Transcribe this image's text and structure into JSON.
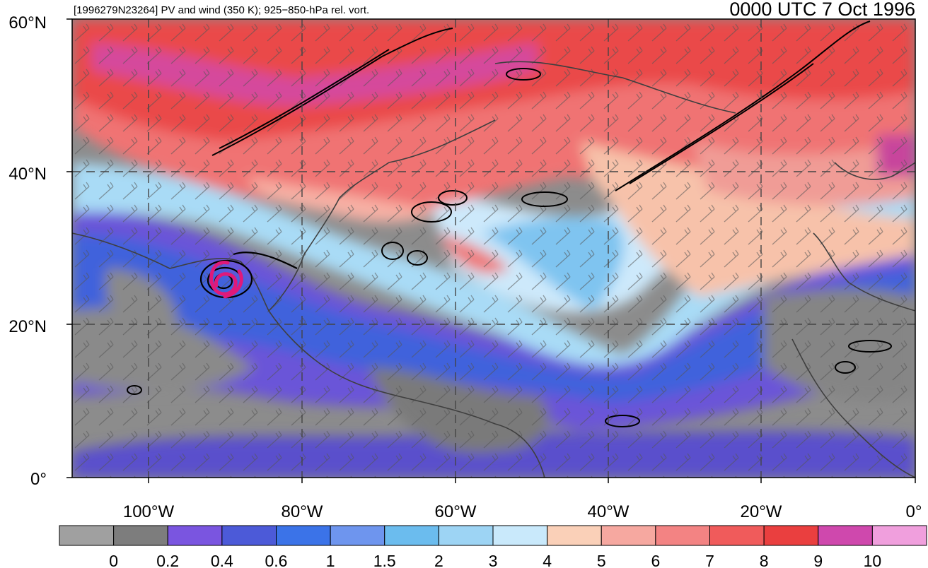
{
  "header": {
    "left_title": "[1996279N23264] PV and wind (350 K); 925−850-hPa rel. vort.",
    "right_title": "0000 UTC 7 Oct 1996"
  },
  "map": {
    "lat_labels": [
      "60°N",
      "40°N",
      "20°N",
      "0°"
    ],
    "lon_labels": [
      "100°W",
      "80°W",
      "60°W",
      "40°W",
      "20°W",
      "0°"
    ],
    "storm_marker": "tropical-cyclone-icon",
    "storm_color": "#e0197a"
  },
  "colorbar": {
    "colors": [
      "#a0a0a0",
      "#7d7d7d",
      "#7a55e0",
      "#4c5ad8",
      "#3b73e8",
      "#6e95ee",
      "#6bbcee",
      "#9dd4f4",
      "#c9e9fb",
      "#fad0b8",
      "#f6a8a0",
      "#f38383",
      "#f05b5b",
      "#ea3f3f",
      "#cf48ad",
      "#f09fdd"
    ],
    "tick_labels": [
      "0",
      "0.2",
      "0.4",
      "0.6",
      "1",
      "1.5",
      "2",
      "3",
      "4",
      "5",
      "6",
      "7",
      "8",
      "9",
      "10"
    ]
  }
}
